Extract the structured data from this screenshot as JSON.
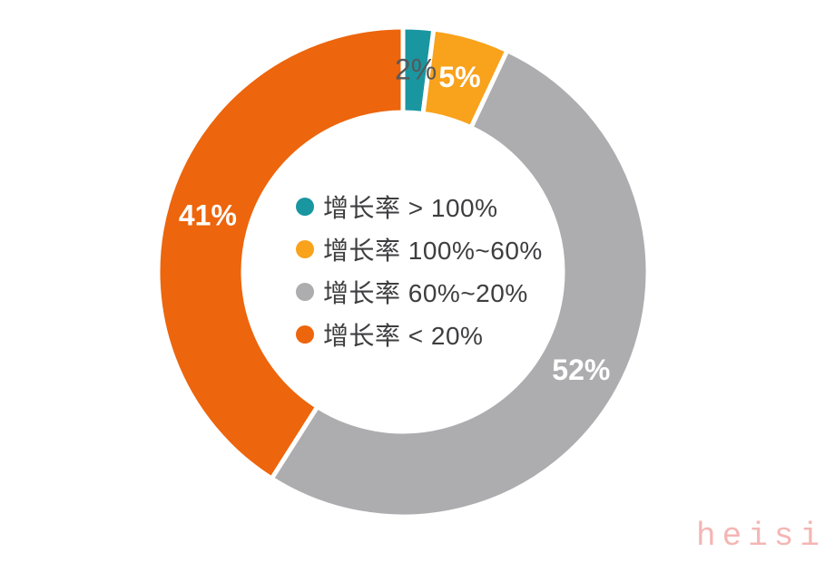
{
  "chart_data": {
    "type": "pie",
    "subtype": "donut",
    "unit": "%",
    "start_angle_deg": 0,
    "direction": "clockwise",
    "legend_position": "center",
    "legend_text_color": "#3e3e40",
    "segments": [
      {
        "label": "增长率 > 100%",
        "value": 2,
        "display": "2%",
        "color": "#1A96A0",
        "label_color": "#58585a",
        "label_weight": "normal"
      },
      {
        "label": "增长率 100%~60%",
        "value": 5,
        "display": "5%",
        "color": "#F9A21B",
        "label_color": "#ffffff",
        "label_weight": "bold"
      },
      {
        "label": "增长率 60%~20%",
        "value": 52,
        "display": "52%",
        "color": "#ADADB0",
        "label_color": "#ffffff",
        "label_weight": "bold"
      },
      {
        "label": "增长率 < 20%",
        "value": 41,
        "display": "41%",
        "color": "#ED650C",
        "label_color": "#ffffff",
        "label_weight": "bold"
      }
    ]
  },
  "watermark": {
    "text": "heisi",
    "color": "#F4B6B4"
  }
}
